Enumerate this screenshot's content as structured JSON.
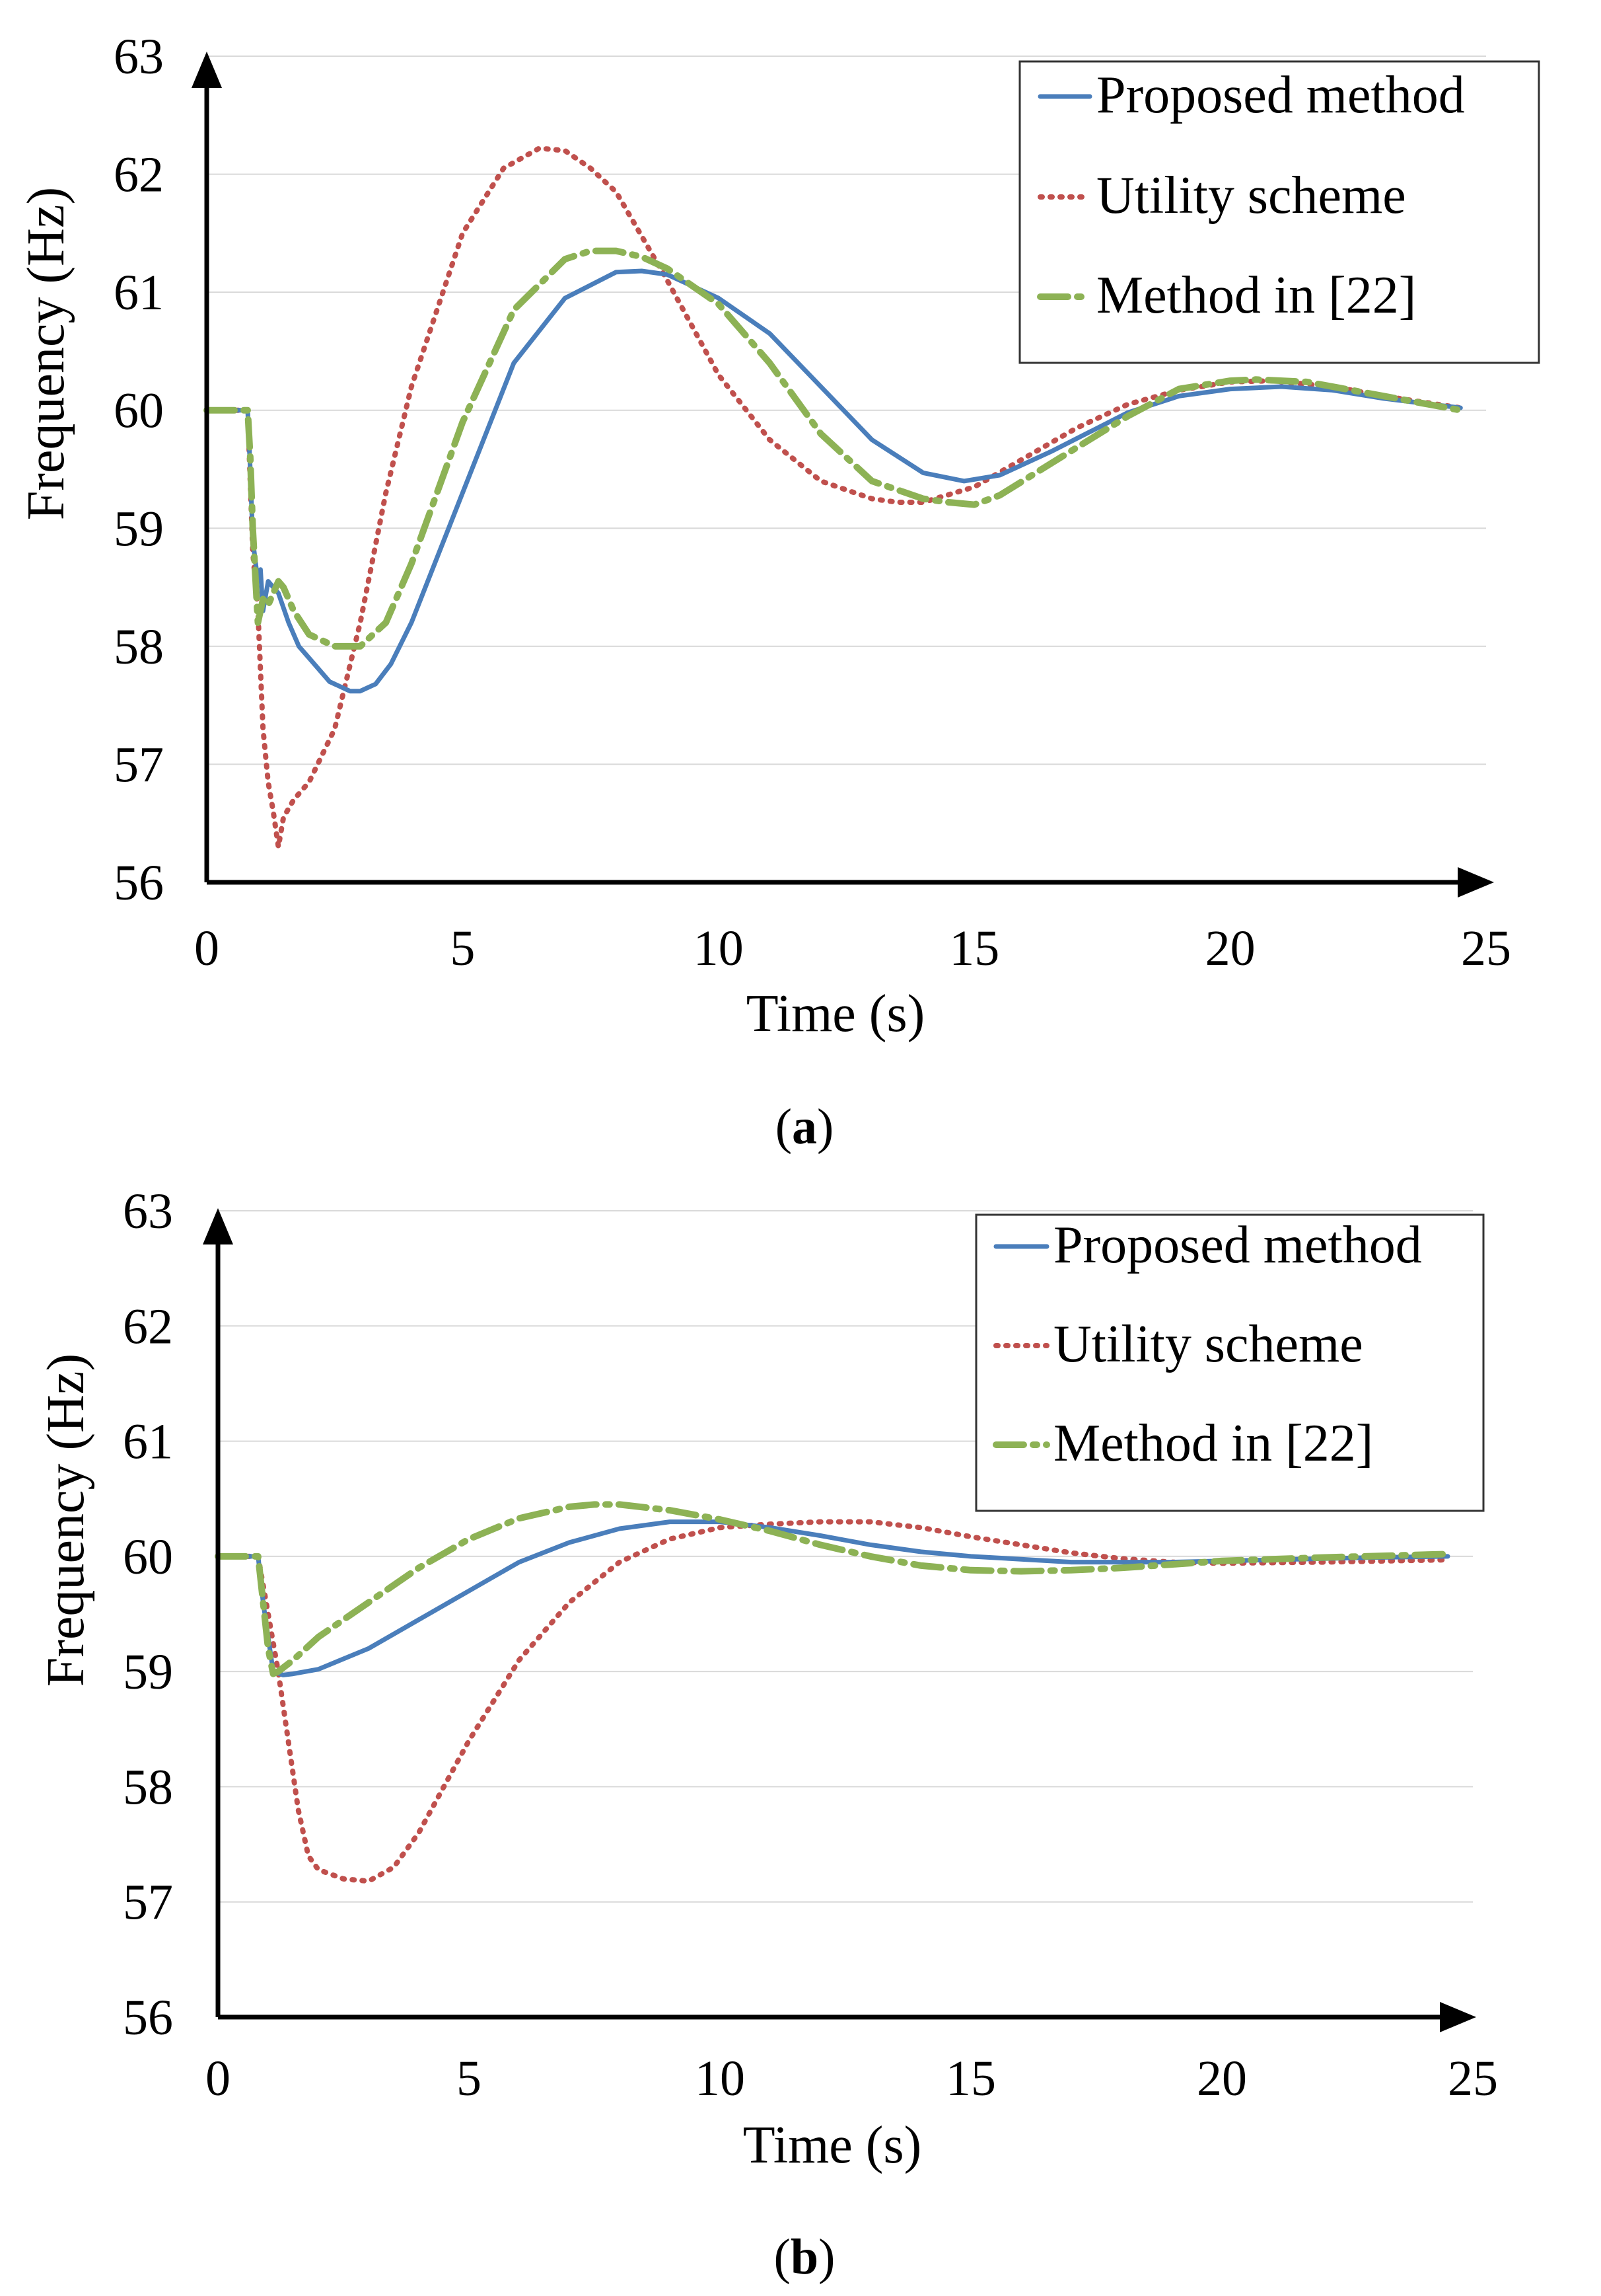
{
  "colors": {
    "proposed": "#4a7ebb",
    "utility": "#c0504d",
    "method22": "#8db255"
  },
  "chart_data": [
    {
      "type": "line",
      "caption_letter": "a",
      "xlabel": "Time (s)",
      "ylabel": "Frequency (Hz)",
      "xlim": [
        0,
        25
      ],
      "ylim": [
        56,
        63
      ],
      "xticks": [
        0,
        5,
        10,
        15,
        20,
        25
      ],
      "yticks": [
        56,
        57,
        58,
        59,
        60,
        61,
        62,
        63
      ],
      "grid": "horizontal",
      "legend_position": "top-right",
      "series": [
        {
          "name": "Proposed method",
          "style": "solid",
          "x": [
            0,
            0.8,
            0.85,
            0.9,
            1.0,
            1.05,
            1.1,
            1.2,
            1.4,
            1.6,
            1.8,
            2.0,
            2.4,
            2.8,
            3.0,
            3.3,
            3.6,
            4.0,
            5.0,
            6.0,
            7.0,
            8.0,
            8.5,
            9.0,
            10.0,
            11.0,
            12.0,
            13.0,
            14.0,
            14.8,
            15.5,
            16.5,
            18.0,
            19.0,
            20.0,
            21.0,
            22.0,
            23.0,
            24.5
          ],
          "y": [
            60.0,
            60.0,
            59.5,
            58.9,
            58.55,
            58.65,
            58.3,
            58.55,
            58.45,
            58.2,
            58.0,
            57.9,
            57.7,
            57.62,
            57.62,
            57.68,
            57.85,
            58.2,
            59.3,
            60.4,
            60.95,
            61.17,
            61.18,
            61.15,
            60.95,
            60.65,
            60.2,
            59.75,
            59.47,
            59.4,
            59.45,
            59.65,
            59.98,
            60.12,
            60.18,
            60.2,
            60.17,
            60.1,
            60.02
          ]
        },
        {
          "name": "Utility scheme",
          "style": "dotted",
          "x": [
            0,
            0.8,
            0.9,
            1.0,
            1.1,
            1.2,
            1.3,
            1.4,
            1.5,
            1.7,
            2.0,
            2.5,
            3.0,
            3.5,
            4.0,
            5.0,
            5.8,
            6.5,
            7.0,
            7.5,
            8.0,
            9.0,
            10.0,
            11.0,
            12.0,
            13.0,
            13.5,
            14.0,
            15.0,
            16.0,
            17.0,
            18.0,
            19.0,
            20.0,
            20.8,
            22.0,
            23.0,
            24.5
          ],
          "y": [
            60.0,
            60.0,
            58.8,
            58.3,
            57.3,
            56.85,
            56.6,
            56.3,
            56.55,
            56.7,
            56.85,
            57.3,
            58.2,
            59.3,
            60.2,
            61.5,
            62.05,
            62.22,
            62.2,
            62.05,
            61.85,
            61.1,
            60.3,
            59.75,
            59.4,
            59.25,
            59.22,
            59.22,
            59.35,
            59.6,
            59.85,
            60.05,
            60.17,
            60.24,
            60.25,
            60.2,
            60.12,
            60.02
          ]
        },
        {
          "name": "Method in [22]",
          "style": "dash-dot",
          "x": [
            0,
            0.8,
            0.85,
            0.9,
            1.0,
            1.1,
            1.2,
            1.3,
            1.4,
            1.5,
            1.7,
            2.0,
            2.5,
            3.0,
            3.5,
            4.0,
            5.0,
            6.0,
            7.0,
            7.5,
            8.0,
            8.5,
            9.0,
            10.0,
            11.0,
            12.0,
            13.0,
            14.0,
            14.5,
            15.0,
            15.5,
            16.5,
            18.0,
            19.0,
            20.0,
            20.5,
            21.5,
            23.0,
            24.5
          ],
          "y": [
            60.0,
            60.0,
            59.6,
            59.0,
            58.2,
            58.4,
            58.35,
            58.45,
            58.55,
            58.5,
            58.3,
            58.1,
            58.0,
            58.0,
            58.2,
            58.7,
            59.9,
            60.85,
            61.28,
            61.35,
            61.35,
            61.3,
            61.2,
            60.9,
            60.4,
            59.8,
            59.4,
            59.25,
            59.22,
            59.2,
            59.28,
            59.55,
            59.95,
            60.18,
            60.25,
            60.26,
            60.24,
            60.12,
            60.0
          ]
        }
      ]
    },
    {
      "type": "line",
      "caption_letter": "b",
      "xlabel": "Time (s)",
      "ylabel": "Frequency (Hz)",
      "xlim": [
        0,
        25
      ],
      "ylim": [
        56,
        63
      ],
      "xticks": [
        0,
        5,
        10,
        15,
        20,
        25
      ],
      "yticks": [
        56,
        57,
        58,
        59,
        60,
        61,
        62,
        63
      ],
      "grid": "horizontal",
      "legend_position": "top-right",
      "series": [
        {
          "name": "Proposed method",
          "style": "solid",
          "x": [
            0,
            0.8,
            0.9,
            1.0,
            1.1,
            1.3,
            1.5,
            2.0,
            3.0,
            4.0,
            5.0,
            6.0,
            7.0,
            8.0,
            9.0,
            10.0,
            11.0,
            12.0,
            13.0,
            14.0,
            15.0,
            17.0,
            19.0,
            21.0,
            23.0,
            24.5
          ],
          "y": [
            60.0,
            60.0,
            59.6,
            59.3,
            59.0,
            58.97,
            58.98,
            59.02,
            59.2,
            59.45,
            59.7,
            59.95,
            60.12,
            60.24,
            60.3,
            60.3,
            60.25,
            60.18,
            60.1,
            60.04,
            60.0,
            59.95,
            59.95,
            59.97,
            59.99,
            60.0
          ]
        },
        {
          "name": "Utility scheme",
          "style": "dotted",
          "x": [
            0,
            0.8,
            1.0,
            1.2,
            1.4,
            1.6,
            1.8,
            2.0,
            2.5,
            3.0,
            3.5,
            4.0,
            5.0,
            6.0,
            7.0,
            8.0,
            9.0,
            10.0,
            11.0,
            12.0,
            13.0,
            14.0,
            15.0,
            16.0,
            17.0,
            18.0,
            19.0,
            20.0,
            22.0,
            24.5
          ],
          "y": [
            60.0,
            60.0,
            59.5,
            59.0,
            58.4,
            57.8,
            57.4,
            57.28,
            57.2,
            57.18,
            57.3,
            57.6,
            58.4,
            59.1,
            59.6,
            59.95,
            60.15,
            60.25,
            60.28,
            60.3,
            60.3,
            60.25,
            60.17,
            60.1,
            60.03,
            59.98,
            59.95,
            59.94,
            59.95,
            59.97
          ]
        },
        {
          "name": "Method in [22]",
          "style": "dash-dot",
          "x": [
            0,
            0.8,
            0.9,
            1.0,
            1.1,
            1.2,
            1.5,
            2.0,
            3.0,
            4.0,
            5.0,
            6.0,
            7.0,
            7.5,
            8.0,
            9.0,
            10.0,
            11.0,
            12.0,
            13.0,
            14.0,
            15.0,
            16.0,
            17.0,
            18.0,
            19.0,
            20.0,
            22.0,
            24.5
          ],
          "y": [
            60.0,
            60.0,
            59.6,
            59.2,
            58.98,
            59.0,
            59.1,
            59.3,
            59.6,
            59.9,
            60.15,
            60.33,
            60.43,
            60.45,
            60.45,
            60.4,
            60.32,
            60.22,
            60.1,
            60.0,
            59.92,
            59.88,
            59.87,
            59.88,
            59.9,
            59.93,
            59.96,
            59.99,
            60.02
          ]
        }
      ]
    }
  ]
}
